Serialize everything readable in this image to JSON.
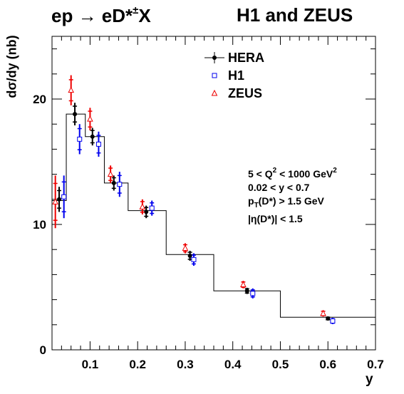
{
  "chart_data": {
    "type": "scatter",
    "title": "ep → eD*±X",
    "title_right": "H1 and ZEUS",
    "xlabel": "y",
    "ylabel": "dσ/dy (nb)",
    "xlim": [
      0.02,
      0.7
    ],
    "ylim": [
      0,
      25
    ],
    "x_ticks": [
      "0.1",
      "0.2",
      "0.3",
      "0.4",
      "0.5",
      "0.6",
      "0.7"
    ],
    "y_ticks": [
      "0",
      "10",
      "20"
    ],
    "legend_position": "top-right",
    "cuts": {
      "q2": "5 < Q² < 1000 GeV²",
      "y": "0.02 < y < 0.7",
      "pt": "pT(D*) > 1.5 GeV",
      "eta": "|η(D*)| < 1.5"
    },
    "theory_histogram": {
      "bin_edges": [
        0.02,
        0.05,
        0.09,
        0.13,
        0.18,
        0.26,
        0.36,
        0.5,
        0.7
      ],
      "values": [
        11.9,
        18.8,
        17.0,
        13.3,
        11.1,
        7.6,
        4.7,
        2.6
      ]
    },
    "series": [
      {
        "name": "HERA",
        "marker": "filled-circle",
        "color": "#000000",
        "x": [
          0.035,
          0.068,
          0.105,
          0.15,
          0.218,
          0.31,
          0.43,
          0.6
        ],
        "y": [
          12.0,
          18.8,
          17.0,
          13.3,
          11.0,
          7.5,
          4.7,
          2.5
        ],
        "err": [
          1.0,
          0.9,
          0.7,
          0.6,
          0.5,
          0.4,
          0.25,
          0.15
        ]
      },
      {
        "name": "H1",
        "marker": "open-square",
        "color": "#0000ee",
        "x": [
          0.045,
          0.078,
          0.118,
          0.162,
          0.23,
          0.318,
          0.442,
          0.61
        ],
        "y": [
          12.2,
          16.8,
          16.4,
          13.2,
          11.3,
          7.2,
          4.5,
          2.3
        ],
        "err": [
          1.7,
          1.2,
          1.0,
          1.0,
          0.6,
          0.5,
          0.4,
          0.25
        ]
      },
      {
        "name": "ZEUS",
        "marker": "open-triangle",
        "color": "#ee0000",
        "x": [
          0.027,
          0.06,
          0.1,
          0.143,
          0.21,
          0.3,
          0.422,
          0.59
        ],
        "y": [
          11.8,
          20.7,
          18.4,
          14.0,
          11.4,
          8.1,
          5.2,
          2.9
        ],
        "err": [
          2.1,
          1.2,
          0.9,
          0.7,
          0.6,
          0.4,
          0.3,
          0.25
        ]
      }
    ]
  },
  "title_parts": {
    "main": "ep  → eD*",
    "sup": "±",
    "suffix": "X",
    "right": "H1 and ZEUS"
  },
  "cuts_display": {
    "q2_pre": "5 < Q",
    "q2_sup1": "2",
    "q2_mid": " < 1000 GeV",
    "q2_sup2": "2",
    "y": "0.02 < y < 0.7",
    "pt_pre": "p",
    "pt_sub": "T",
    "pt_post": "(D*) > 1.5 GeV",
    "eta": "|η(D*)| < 1.5"
  }
}
